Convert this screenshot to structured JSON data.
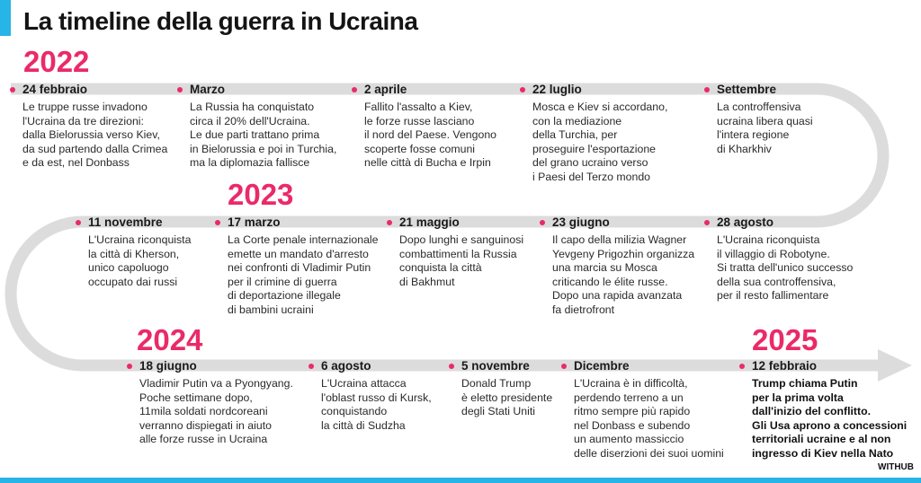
{
  "title": "La timeline della guerra in Ucraina",
  "years": [
    "2022",
    "2023",
    "2024",
    "2025"
  ],
  "colors": {
    "accent": "#ea2a69",
    "track": "#dcdcdc",
    "bar": "#27b4e6"
  },
  "rows": [
    [
      {
        "date": "24 febbraio",
        "text": "Le truppe russe invadono\nl'Ucraina da tre direzioni:\ndalla Bielorussia verso Kiev,\nda sud partendo dalla Crimea\ne da est, nel Donbass"
      },
      {
        "date": "Marzo",
        "text": "La Russia ha conquistato\ncirca il 20% dell'Ucraina.\nLe due parti trattano prima\nin Bielorussia e poi in Turchia,\nma la diplomazia fallisce"
      },
      {
        "date": "2 aprile",
        "text": "Fallito l'assalto a Kiev,\nle forze russe lasciano\nil nord del Paese. Vengono\nscoperte fosse comuni\nnelle città di Bucha e Irpin"
      },
      {
        "date": "22 luglio",
        "text": "Mosca e Kiev si accordano,\ncon la mediazione\ndella Turchia, per\nproseguire l'esportazione\ndel grano ucraino verso\ni Paesi del Terzo mondo"
      },
      {
        "date": "Settembre",
        "text": "La controffensiva\nucraina libera quasi\nl'intera regione\ndi Kharkhiv"
      }
    ],
    [
      {
        "date": "11 novembre",
        "text": "L'Ucraina riconquista\nla città di Kherson,\nunico capoluogo\noccupato dai russi"
      },
      {
        "date": "17 marzo",
        "text": "La Corte penale internazionale\nemette un mandato d'arresto\nnei confronti di Vladimir Putin\nper il crimine di guerra\ndi deportazione illegale\ndi bambini ucraini"
      },
      {
        "date": "21 maggio",
        "text": "Dopo lunghi e sanguinosi\ncombattimenti la Russia\nconquista la città\ndi Bakhmut"
      },
      {
        "date": "23 giugno",
        "text": "Il capo della milizia Wagner\nYevgeny Prigozhin organizza\nuna marcia su Mosca\ncriticando le élite russe.\nDopo una rapida avanzata\nfa dietrofront"
      },
      {
        "date": "28 agosto",
        "text": "L'Ucraina riconquista\nil villaggio di Robotyne.\nSi tratta dell'unico successo\ndella sua controffensiva,\nper il resto fallimentare"
      }
    ],
    [
      {
        "date": "18 giugno",
        "text": "Vladimir Putin va a Pyongyang.\nPoche settimane dopo,\n11mila soldati nordcoreani\nverranno dispiegati in aiuto\nalle forze russe in Ucraina"
      },
      {
        "date": "6 agosto",
        "text": "L'Ucraina attacca\nl'oblast russo di Kursk,\nconquistando\nla città di Sudzha"
      },
      {
        "date": "5 novembre",
        "text": "Donald Trump\nè eletto presidente\ndegli Stati Uniti"
      },
      {
        "date": "Dicembre",
        "text": "L'Ucraina è in difficoltà,\nperdendo terreno a un\nritmo sempre più rapido\nnel Donbass e subendo\nun aumento massiccio\ndelle diserzioni dei suoi uomini"
      },
      {
        "date": "12 febbraio",
        "text": "Trump chiama Putin\nper la prima volta\ndall'inizio del conflitto.\nGli Usa aprono a concessioni\nterritoriali ucraine e al non\ningresso di Kiev nella Nato"
      }
    ]
  ],
  "brand": "WITHUB"
}
